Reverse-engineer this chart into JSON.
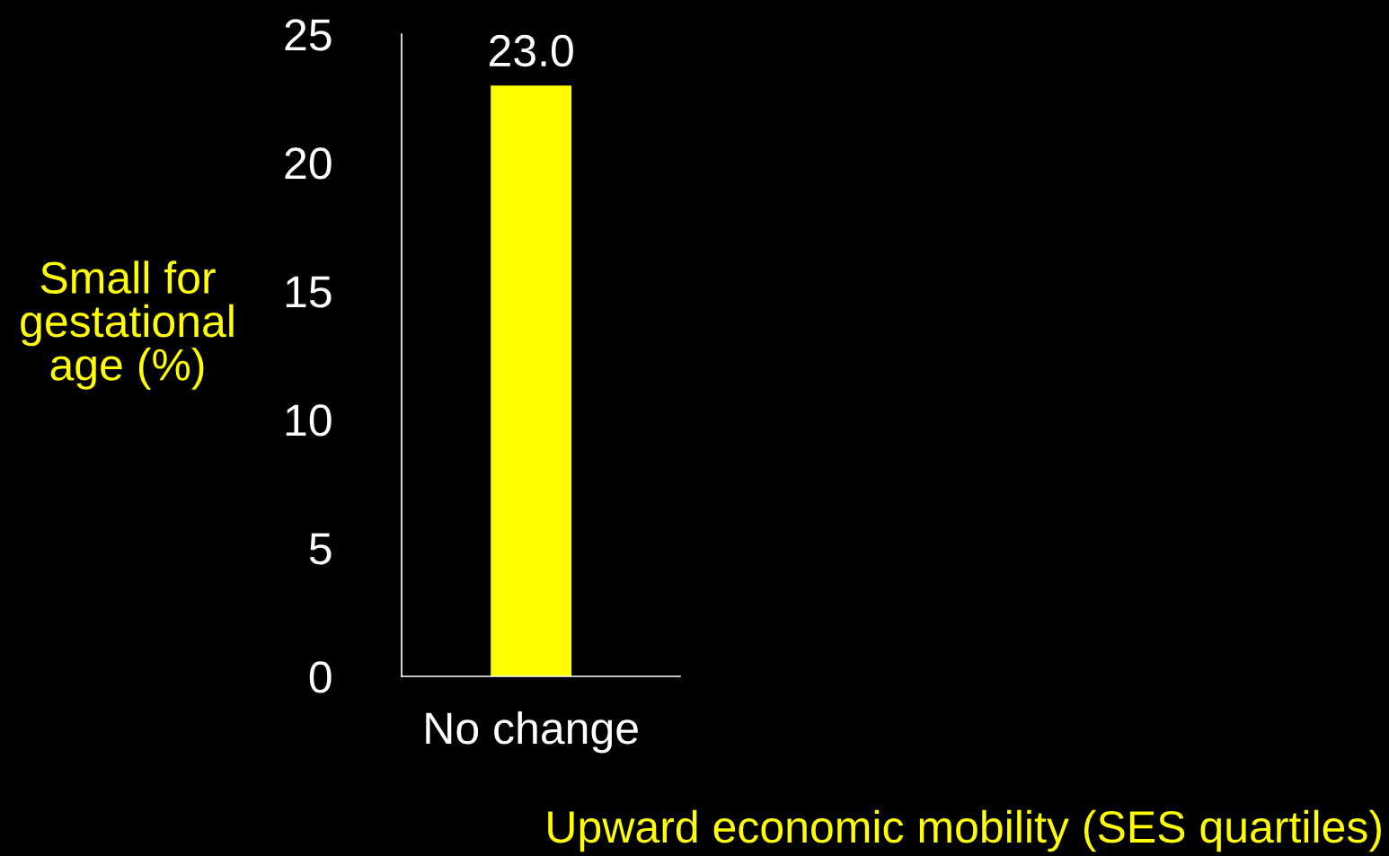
{
  "chart_data": {
    "type": "bar",
    "categories": [
      "No change"
    ],
    "values": [
      23.0
    ],
    "value_labels": [
      "23.0"
    ],
    "color": "#ffff00",
    "ylabel": "Small for\ngestational\nage (%)",
    "xlabel": "Upward economic mobility (SES quartiles)",
    "ylim": [
      0,
      25
    ],
    "yticks": [
      0,
      5,
      10,
      15,
      20,
      25
    ],
    "grid": false,
    "legend": false
  }
}
